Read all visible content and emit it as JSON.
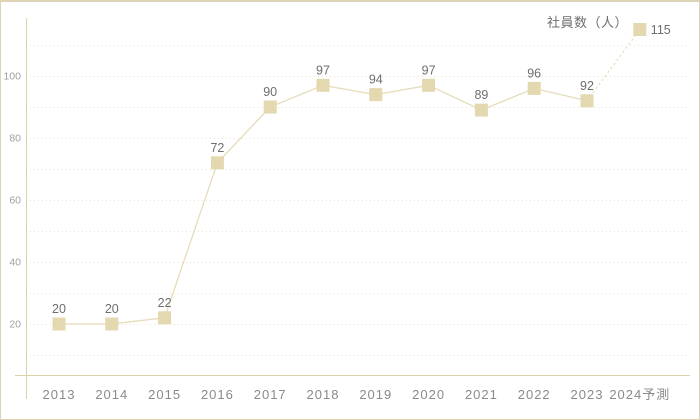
{
  "page": {
    "background": "#ffffff",
    "frame_color": "#dcd4b5"
  },
  "legend": {
    "label": "社員数（人）"
  },
  "chart_data": {
    "type": "line",
    "title": "",
    "xlabel": "",
    "ylabel": "",
    "categories": [
      "2013",
      "2014",
      "2015",
      "2016",
      "2017",
      "2018",
      "2019",
      "2020",
      "2021",
      "2022",
      "2023",
      "2024予測"
    ],
    "series": [
      {
        "name": "社員数（人）",
        "values": [
          20,
          20,
          22,
          72,
          90,
          97,
          94,
          97,
          89,
          96,
          92,
          115
        ],
        "marker": "square",
        "color": "#e3d8b0",
        "line_color": "#e6dcb9",
        "last_segment_dashed": true
      }
    ],
    "data_labels_visible": true,
    "yticks": [
      20,
      40,
      60,
      80,
      100
    ],
    "ylim": [
      0,
      120
    ],
    "grid": {
      "horizontal": true,
      "style": "dotted",
      "step": 10,
      "min": 10,
      "max": 110,
      "color": "#eae2c9"
    },
    "legend_position": "top-right",
    "colors": {
      "axis": "#ddd3ab",
      "tick_text": "#9f9f9f",
      "category_text": "#8a8a8a",
      "data_label_text": "#6e6e6e"
    }
  }
}
